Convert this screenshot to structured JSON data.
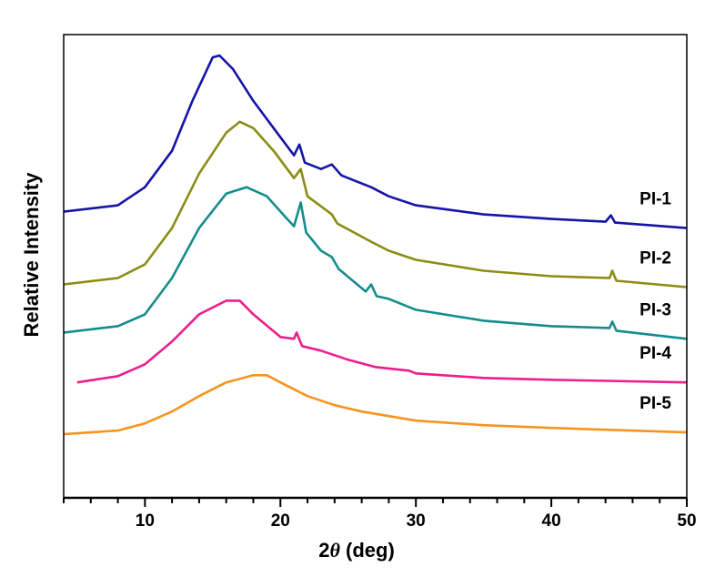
{
  "chart_data": {
    "type": "line",
    "title": "",
    "xlabel_prefix": "2",
    "xlabel_symbol": "θ",
    "xlabel_suffix": " (deg)",
    "ylabel": "Relative Intensity",
    "xlim": [
      4,
      50
    ],
    "ylim": [
      0,
      510
    ],
    "xticks": [
      10,
      20,
      30,
      40,
      50
    ],
    "xtick_labels": [
      "10",
      "20",
      "30",
      "40",
      "50"
    ],
    "minor_tick_step": 2,
    "grid": false,
    "legend": "inline labels at right end of each curve",
    "series": [
      {
        "name": "PI-1",
        "color": "#1414a8",
        "x": [
          4,
          8,
          10,
          12,
          13.5,
          15,
          15.5,
          16.5,
          18,
          19.5,
          21,
          21.4,
          21.8,
          23,
          23.8,
          24.5,
          26.7,
          28,
          30,
          35,
          40,
          44,
          44.4,
          44.7,
          50
        ],
        "y": [
          315,
          322,
          342,
          382,
          437,
          485,
          487,
          472,
          437,
          407,
          377,
          389,
          369,
          362,
          367,
          355,
          342,
          332,
          322,
          312,
          307,
          304,
          311,
          303,
          297
        ]
      },
      {
        "name": "PI-2",
        "color": "#8c8c14",
        "x": [
          4,
          8,
          10,
          12,
          14,
          16,
          17,
          18,
          19.5,
          21,
          21.5,
          22,
          23.8,
          24.2,
          26.7,
          28,
          30,
          35,
          40,
          44.3,
          44.5,
          44.8,
          50
        ],
        "y": [
          235,
          242,
          257,
          297,
          357,
          402,
          414,
          407,
          382,
          352,
          362,
          332,
          312,
          302,
          282,
          272,
          262,
          250,
          244,
          242,
          250,
          239,
          232
        ]
      },
      {
        "name": "PI-3",
        "color": "#148c8c",
        "x": [
          4,
          8,
          10,
          12,
          14,
          16,
          17.5,
          19,
          20.5,
          21,
          21.5,
          21.9,
          23,
          23.8,
          24.3,
          26.3,
          26.7,
          27.1,
          28,
          30,
          35,
          40,
          44.3,
          44.5,
          44.8,
          50
        ],
        "y": [
          182,
          189,
          202,
          242,
          297,
          335,
          342,
          332,
          307,
          299,
          325,
          292,
          272,
          265,
          252,
          227,
          235,
          222,
          219,
          207,
          195,
          189,
          187,
          194,
          184,
          175
        ]
      },
      {
        "name": "PI-4",
        "color": "#ec1e8c",
        "x": [
          5,
          8,
          10,
          12,
          14,
          16,
          17,
          18,
          20,
          21,
          21.2,
          21.6,
          23,
          25,
          27,
          29.5,
          30,
          35,
          40,
          50
        ],
        "y": [
          127,
          134,
          147,
          172,
          202,
          217,
          217,
          202,
          177,
          175,
          182,
          167,
          162,
          152,
          144,
          140,
          137,
          132,
          130,
          127
        ]
      },
      {
        "name": "PI-5",
        "color": "#f7941d",
        "x": [
          4,
          8,
          10,
          12,
          14,
          16,
          18,
          19,
          20,
          22,
          24,
          26,
          30,
          35,
          40,
          50
        ],
        "y": [
          70,
          74,
          82,
          95,
          112,
          127,
          135,
          135,
          127,
          112,
          102,
          95,
          85,
          80,
          77,
          72
        ]
      }
    ]
  }
}
